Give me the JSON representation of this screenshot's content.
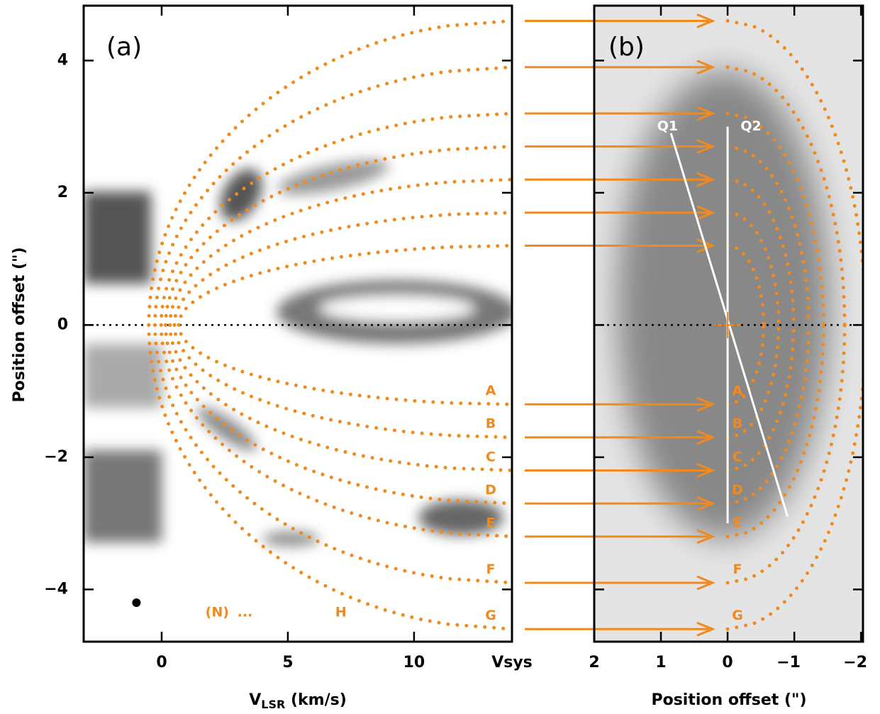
{
  "chart_data": [
    {
      "type": "pv",
      "panel_label": "(a)",
      "x_label": {
        "main": "V",
        "sub": "LSR",
        "rest": " (km/s)"
      },
      "y_label": "Position offset (\")",
      "xlim": [
        -3.09,
        13.88
      ],
      "xticks": [
        0,
        5,
        10,
        {
          "value": 13.88,
          "label": "Vsys"
        }
      ],
      "ylim": [
        -4.79,
        4.83
      ],
      "yticks": [
        {
          "value": -4,
          "label": "−4"
        },
        {
          "value": -2,
          "label": "−2"
        },
        0,
        2,
        4
      ],
      "annotations": [
        "(N)",
        "...",
        "H"
      ],
      "curve_labels": [
        "A",
        "B",
        "C",
        "D",
        "E",
        "F",
        "G"
      ]
    },
    {
      "type": "image",
      "panel_label": "(b)",
      "x_label": {
        "main": "Position offset (\")"
      },
      "xlim": [
        2,
        -2.03
      ],
      "xticks": [
        2,
        1,
        0,
        {
          "value": -1,
          "label": "−1"
        },
        {
          "value": -2,
          "label": "−2"
        }
      ],
      "ylim": [
        -4.79,
        4.83
      ],
      "yticks": [
        -4,
        -2,
        0,
        2,
        4
      ],
      "slit_labels": [
        "Q1",
        "Q2"
      ],
      "arrow_offsets": [
        4.6,
        3.9,
        3.2,
        2.7,
        2.2,
        1.7,
        1.2,
        -1.2,
        -1.7,
        -2.2,
        -2.7,
        -3.2,
        -3.9,
        -4.6
      ],
      "curve_labels": [
        "A",
        "B",
        "C",
        "D",
        "E",
        "F",
        "G"
      ]
    }
  ]
}
